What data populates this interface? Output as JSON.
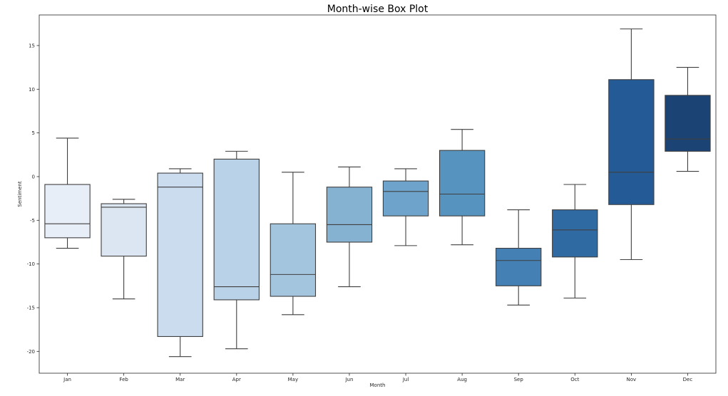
{
  "chart_data": {
    "type": "box",
    "title": "Month-wise Box Plot",
    "xlabel": "Month",
    "ylabel": "Sentiment",
    "ylim": [
      -22.5,
      18.5
    ],
    "yticks": [
      -20,
      -15,
      -10,
      -5,
      0,
      5,
      10,
      15
    ],
    "grid": false,
    "categories": [
      "Jan",
      "Feb",
      "Mar",
      "Apr",
      "May",
      "Jun",
      "Jul",
      "Aug",
      "Sep",
      "Oct",
      "Nov",
      "Dec"
    ],
    "boxes": [
      {
        "label": "Jan",
        "whisker_low": -8.2,
        "q1": -7.0,
        "median": -5.4,
        "q3": -0.9,
        "whisker_high": 4.4,
        "color": "#e8eef8"
      },
      {
        "label": "Feb",
        "whisker_low": -14.0,
        "q1": -9.1,
        "median": -3.5,
        "q3": -3.1,
        "whisker_high": -2.6,
        "color": "#dce6f3"
      },
      {
        "label": "Mar",
        "whisker_low": -20.6,
        "q1": -18.3,
        "median": -1.2,
        "q3": 0.4,
        "whisker_high": 0.9,
        "color": "#cbdcee"
      },
      {
        "label": "Apr",
        "whisker_low": -19.7,
        "q1": -14.1,
        "median": -12.6,
        "q3": 2.0,
        "whisker_high": 2.9,
        "color": "#b9d2e7"
      },
      {
        "label": "May",
        "whisker_low": -15.8,
        "q1": -13.7,
        "median": -11.2,
        "q3": -5.4,
        "whisker_high": 0.5,
        "color": "#a3c5de"
      },
      {
        "label": "Jun",
        "whisker_low": -12.6,
        "q1": -7.5,
        "median": -5.5,
        "q3": -1.2,
        "whisker_high": 1.1,
        "color": "#86b2d1"
      },
      {
        "label": "Jul",
        "whisker_low": -7.9,
        "q1": -4.5,
        "median": -1.7,
        "q3": -0.5,
        "whisker_high": 0.9,
        "color": "#6ea4cb"
      },
      {
        "label": "Aug",
        "whisker_low": -7.8,
        "q1": -4.5,
        "median": -2.0,
        "q3": 3.0,
        "whisker_high": 5.4,
        "color": "#5693bf"
      },
      {
        "label": "Sep",
        "whisker_low": -14.7,
        "q1": -12.5,
        "median": -9.6,
        "q3": -8.2,
        "whisker_high": -3.8,
        "color": "#4580b5"
      },
      {
        "label": "Oct",
        "whisker_low": -13.9,
        "q1": -9.2,
        "median": -6.1,
        "q3": -3.8,
        "whisker_high": -0.9,
        "color": "#306aa3"
      },
      {
        "label": "Nov",
        "whisker_low": -9.5,
        "q1": -3.2,
        "median": 0.5,
        "q3": 11.1,
        "whisker_high": 16.9,
        "color": "#245a96"
      },
      {
        "label": "Dec",
        "whisker_low": 0.6,
        "q1": 2.9,
        "median": 4.3,
        "q3": 9.3,
        "whisker_high": 12.5,
        "color": "#1b4475"
      }
    ]
  }
}
